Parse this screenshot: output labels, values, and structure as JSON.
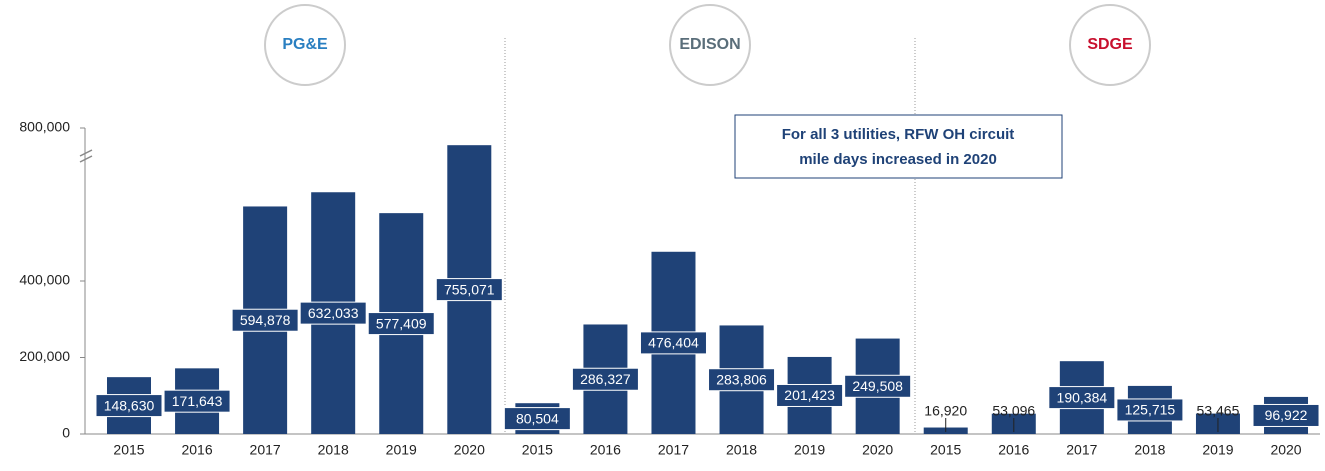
{
  "chart_data": {
    "type": "bar",
    "color": "#1f4277",
    "ylim": [
      0,
      800000
    ],
    "yticks": [
      {
        "value": 0,
        "label": "0"
      },
      {
        "value": 200000,
        "label": "200,000"
      },
      {
        "value": 400000,
        "label": "400,000"
      },
      {
        "value": 800000,
        "label": "800,000"
      }
    ],
    "annotation": [
      "For all 3 utilities, RFW OH circuit",
      "mile days increased in 2020"
    ],
    "groups": [
      {
        "name": "PG&E",
        "categories": [
          "2015",
          "2016",
          "2017",
          "2018",
          "2019",
          "2020"
        ],
        "values": [
          148630,
          171643,
          594878,
          632033,
          577409,
          755071
        ],
        "value_labels": [
          "148,630",
          "171,643",
          "594,878",
          "632,033",
          "577,409",
          "755,071"
        ]
      },
      {
        "name": "EDISON",
        "categories": [
          "2015",
          "2016",
          "2017",
          "2018",
          "2019",
          "2020"
        ],
        "values": [
          80504,
          286327,
          476404,
          283806,
          201423,
          249508
        ],
        "value_labels": [
          "80,504",
          "286,327",
          "476,404",
          "283,806",
          "201,423",
          "249,508"
        ]
      },
      {
        "name": "SDGE",
        "categories": [
          "2015",
          "2016",
          "2017",
          "2018",
          "2019",
          "2020"
        ],
        "values": [
          16920,
          53096,
          190384,
          125715,
          53465,
          96922
        ],
        "value_labels": [
          "16,920",
          "53,096",
          "190,384",
          "125,715",
          "53,465",
          "96,922"
        ]
      }
    ]
  }
}
